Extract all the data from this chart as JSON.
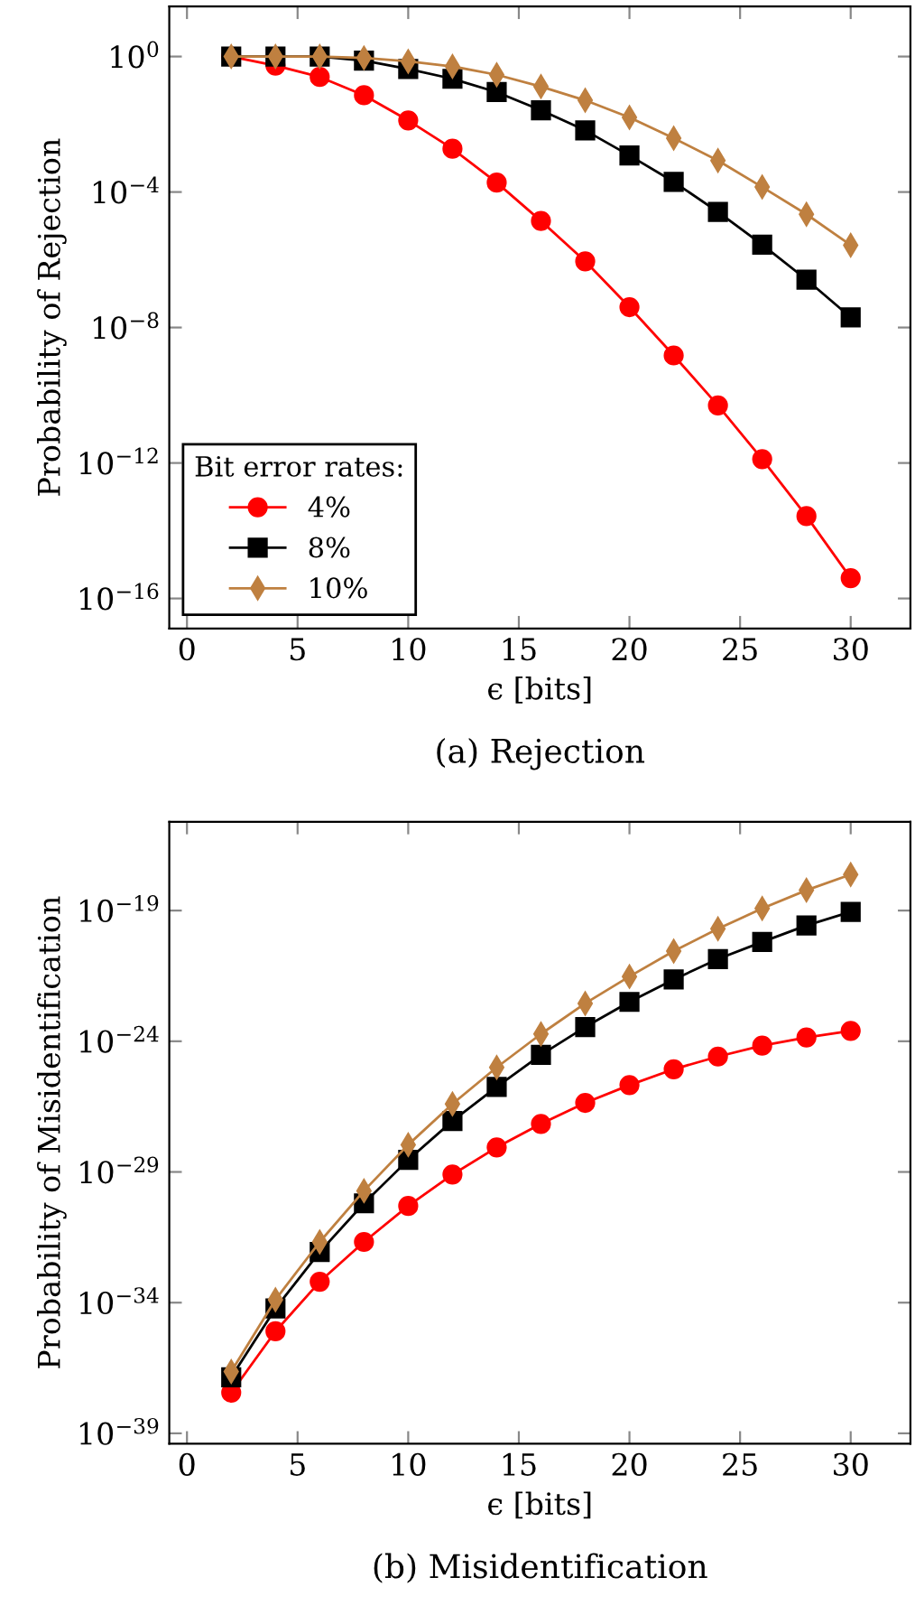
{
  "chart_data": [
    {
      "type": "line",
      "title": "(a) Rejection",
      "xlabel": "ϵ [bits]",
      "ylabel": "Probability of Rejection",
      "log": "y",
      "legend": "bottom left",
      "legend_title": "Bit error rates:",
      "grid": false,
      "x": [
        2,
        4,
        6,
        8,
        10,
        12,
        14,
        16,
        18,
        20,
        22,
        24,
        26,
        28,
        30
      ],
      "xlim": [
        -0.8,
        32.7
      ],
      "xticks": [
        0,
        5,
        10,
        15,
        20,
        25,
        30
      ],
      "ylim": [
        1.3e-17,
        30
      ],
      "yticks": [
        {
          "value": 1,
          "label": "10$^{0}$"
        },
        {
          "value": 0.0001,
          "label": "10$^{−4}$"
        },
        {
          "value": 1e-08,
          "label": "10$^{−8}$"
        },
        {
          "value": 1e-12,
          "label": "10$^{−12}$"
        },
        {
          "value": 1e-16,
          "label": "10$^{−16}$"
        }
      ],
      "series": [
        {
          "name": "4%",
          "color": "#ff0000",
          "marker": "circle",
          "values": [
            1,
            0.54,
            0.25,
            0.072,
            0.013,
            0.0019,
            0.00019,
            1.4e-05,
            9e-07,
            4e-08,
            1.5e-09,
            5e-11,
            1.3e-12,
            2.7e-14,
            4e-16
          ]
        },
        {
          "name": "8%",
          "color": "#000000",
          "marker": "square",
          "values": [
            1,
            1,
            1,
            0.76,
            0.43,
            0.22,
            0.089,
            0.026,
            0.0066,
            0.0012,
            0.0002,
            2.6e-05,
            2.8e-06,
            2.6e-07,
            2e-08
          ]
        },
        {
          "name": "10%",
          "color": "#bf8040",
          "marker": "diamond",
          "values": [
            1,
            1,
            1,
            0.91,
            0.72,
            0.51,
            0.29,
            0.13,
            0.051,
            0.016,
            0.0039,
            0.00085,
            0.00014,
            2.2e-05,
            2.7e-06
          ]
        }
      ]
    },
    {
      "type": "line",
      "title": "(b) Misidentification",
      "xlabel": "ϵ [bits]",
      "ylabel": "Probability of Misidentification",
      "log": "y",
      "grid": false,
      "x": [
        2,
        4,
        6,
        8,
        10,
        12,
        14,
        16,
        18,
        20,
        22,
        24,
        26,
        28,
        30
      ],
      "xlim": [
        -0.8,
        32.7
      ],
      "xticks": [
        0,
        5,
        10,
        15,
        20,
        25,
        30
      ],
      "ylim": [
        4e-40,
        2.5e-16
      ],
      "yticks": [
        {
          "value": 1e-39,
          "label": "10$^{−39}$"
        },
        {
          "value": 1e-34,
          "label": "10$^{−34}$"
        },
        {
          "value": 1e-29,
          "label": "10$^{−29}$"
        },
        {
          "value": 1e-24,
          "label": "10$^{−24}$"
        },
        {
          "value": 1e-19,
          "label": "10$^{−19}$"
        }
      ],
      "series": [
        {
          "color": "#ff0000",
          "marker": "circle",
          "values": [
            3.6e-38,
            8e-36,
            6.3e-34,
            2.1e-32,
            5e-31,
            8e-30,
            8.7e-29,
            6.9e-28,
            4.4e-27,
            2.1e-26,
            8.5e-26,
            2.6e-25,
            6.8e-25,
            1.4e-24,
            2.5e-24
          ]
        },
        {
          "color": "#000000",
          "marker": "square",
          "values": [
            1.4e-37,
            6e-35,
            8.7e-33,
            6.3e-31,
            2.9e-29,
            8.9e-28,
            1.8e-26,
            3e-25,
            3.5e-24,
            3.2e-23,
            2.3e-22,
            1.4e-21,
            6.3e-21,
            2.7e-20,
            8.9e-20
          ]
        },
        {
          "color": "#bf8040",
          "marker": "diamond",
          "values": [
            2.3e-37,
            1.3e-34,
            2.1e-32,
            1.9e-30,
            1.1e-28,
            4e-27,
            1e-25,
            1.9e-24,
            2.8e-23,
            3e-22,
            2.8e-21,
            2e-20,
            1.2e-19,
            6e-19,
            2.4e-18
          ]
        }
      ]
    }
  ]
}
